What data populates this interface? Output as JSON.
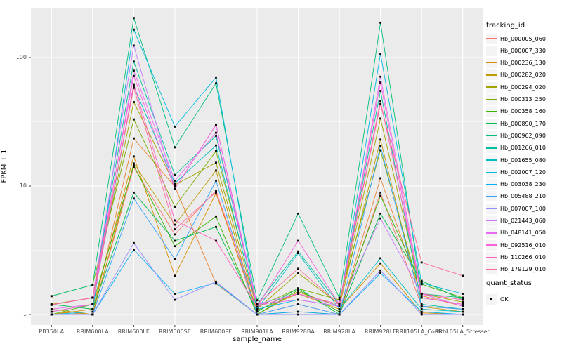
{
  "chart_data": {
    "type": "line",
    "title": "",
    "xlabel": "sample_name",
    "ylabel": "FPKM + 1",
    "y_scale": "log10",
    "y_ticks": [
      1,
      10,
      100
    ],
    "ylim": [
      0.95,
      240
    ],
    "grid": "on",
    "legend_position": "right",
    "point_shape": "filled-square",
    "point_color": "#000000",
    "panel_background": "#EBEBEB",
    "grid_color": "#FFFFFF",
    "categories": [
      "PB350LA",
      "RRIM600LA",
      "RRIM600LE",
      "RRIM600SE",
      "RRIM600PE",
      "RRIM901LA",
      "RRIM928BA",
      "RRIM928LA",
      "RRIM928LE",
      "RRII105LA_Control",
      "RRII105LA_Stressed"
    ],
    "series": [
      {
        "name": "Hb_000005_060",
        "color": "#F8766D",
        "values": [
          1.0,
          1.0,
          14.0,
          4.2,
          9.2,
          1.0,
          1.2,
          1.0,
          8.9,
          1.16,
          1.1
        ]
      },
      {
        "name": "Hb_000007_330",
        "color": "#EA8331",
        "values": [
          1.05,
          1.0,
          23.5,
          9.9,
          1.74,
          1.0,
          1.05,
          1.0,
          11.5,
          1.4,
          1.16
        ]
      },
      {
        "name": "Hb_000236_130",
        "color": "#D89000",
        "values": [
          1.0,
          1.1,
          17.0,
          2.0,
          8.8,
          1.08,
          1.45,
          1.1,
          2.5,
          1.03,
          1.0
        ]
      },
      {
        "name": "Hb_000282_020",
        "color": "#C09B00",
        "values": [
          1.1,
          1.0,
          15.0,
          5.0,
          13.2,
          1.0,
          1.5,
          1.16,
          23.0,
          1.15,
          1.05
        ]
      },
      {
        "name": "Hb_000294_020",
        "color": "#A3A500",
        "values": [
          1.2,
          1.35,
          45.0,
          10.2,
          15.2,
          1.1,
          2.1,
          1.2,
          33.5,
          1.45,
          1.25
        ]
      },
      {
        "name": "Hb_000313_250",
        "color": "#7CAE00",
        "values": [
          1.39,
          1.7,
          33.0,
          6.9,
          18.7,
          1.15,
          1.59,
          1.3,
          19.0,
          1.35,
          1.2
        ]
      },
      {
        "name": "Hb_000358_160",
        "color": "#39B600",
        "values": [
          1.0,
          1.2,
          14.5,
          3.4,
          5.8,
          1.0,
          1.55,
          1.05,
          8.4,
          1.72,
          1.35
        ]
      },
      {
        "name": "Hb_000890_170",
        "color": "#00BB4E",
        "values": [
          1.2,
          1.1,
          8.9,
          3.75,
          4.8,
          1.05,
          1.6,
          1.0,
          6.1,
          1.83,
          1.3
        ]
      },
      {
        "name": "Hb_000962_090",
        "color": "#00C079",
        "values": [
          1.39,
          1.7,
          203.0,
          20.0,
          63.0,
          1.29,
          6.1,
          1.35,
          187.0,
          1.45,
          1.35
        ]
      },
      {
        "name": "Hb_001266_010",
        "color": "#00C19F",
        "values": [
          1.19,
          1.35,
          93.0,
          12.2,
          24.6,
          1.2,
          3.1,
          1.2,
          55.0,
          1.2,
          1.1
        ]
      },
      {
        "name": "Hb_001655_080",
        "color": "#00BFC4",
        "values": [
          1.05,
          1.2,
          60.0,
          10.5,
          20.7,
          1.1,
          3.0,
          1.1,
          2.74,
          1.1,
          1.05
        ]
      },
      {
        "name": "Hb_002007_120",
        "color": "#00BAE0",
        "values": [
          1.0,
          1.05,
          165.0,
          29.0,
          70.0,
          1.1,
          1.3,
          1.16,
          107.0,
          1.76,
          1.45
        ]
      },
      {
        "name": "Hb_003038_230",
        "color": "#00B0F6",
        "values": [
          1.0,
          1.0,
          3.2,
          1.45,
          1.76,
          1.0,
          1.05,
          1.0,
          2.1,
          1.05,
          1.0
        ]
      },
      {
        "name": "Hb_005488_210",
        "color": "#35A2FF",
        "values": [
          1.0,
          1.0,
          8.0,
          2.7,
          11.0,
          1.0,
          1.2,
          1.0,
          20.5,
          1.16,
          1.1
        ]
      },
      {
        "name": "Hb_007007_100",
        "color": "#9590FF",
        "values": [
          1.0,
          1.0,
          3.6,
          1.3,
          1.8,
          1.0,
          1.0,
          1.0,
          2.2,
          1.0,
          1.0
        ]
      },
      {
        "name": "Hb_021443_060",
        "color": "#C77CFF",
        "values": [
          1.19,
          1.35,
          124.0,
          9.5,
          30.0,
          1.2,
          1.45,
          1.16,
          5.6,
          1.45,
          1.16
        ]
      },
      {
        "name": "Hb_048141_050",
        "color": "#E76BF3",
        "values": [
          1.1,
          1.2,
          79.0,
          11.0,
          26.0,
          1.2,
          1.3,
          1.16,
          71.0,
          1.45,
          1.16
        ]
      },
      {
        "name": "Hb_092516_010",
        "color": "#FA62DB",
        "values": [
          1.19,
          1.35,
          72.0,
          9.5,
          30.0,
          1.15,
          3.75,
          1.2,
          64.0,
          1.35,
          1.2
        ]
      },
      {
        "name": "Hb_110266_010",
        "color": "#FF62BC",
        "values": [
          1.05,
          1.2,
          62.0,
          5.4,
          3.75,
          1.15,
          1.45,
          1.2,
          46.0,
          1.45,
          1.3
        ]
      },
      {
        "name": "Hb_179129_010",
        "color": "#FF6A98",
        "values": [
          1.19,
          1.35,
          58.0,
          4.6,
          9.0,
          1.2,
          2.27,
          1.2,
          43.5,
          2.54,
          2.0
        ]
      }
    ]
  },
  "legend": {
    "title": "tracking_id"
  },
  "legend2": {
    "title": "quant_status",
    "items": [
      {
        "label": "OK"
      }
    ]
  }
}
